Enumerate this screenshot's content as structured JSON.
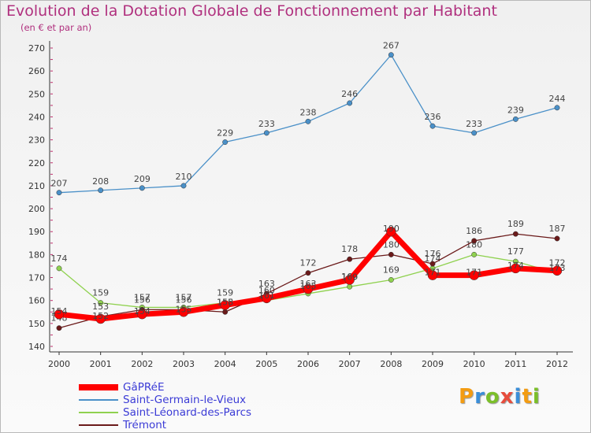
{
  "title": "Evolution de la Dotation Globale de Fonctionnement par Habitant",
  "subtitle": "(en € et par an)",
  "logo": {
    "text": "Proxiti",
    "colors": [
      "#f39c12",
      "#3b8ed8",
      "#7bbf2a",
      "#e74c3c",
      "#3b8ed8",
      "#f39c12",
      "#7bbf2a"
    ]
  },
  "chart_data": {
    "type": "line",
    "categories": [
      "2000",
      "2001",
      "2002",
      "2003",
      "2004",
      "2005",
      "2006",
      "2007",
      "2008",
      "2009",
      "2010",
      "2011",
      "2012"
    ],
    "ylim": [
      140,
      270
    ],
    "yticks": [
      140,
      150,
      160,
      170,
      180,
      190,
      200,
      210,
      220,
      230,
      240,
      250,
      260,
      270
    ],
    "grid": false,
    "legend_position": "bottom-left",
    "series": [
      {
        "name": "Saint-Germain-le-Vieux",
        "color": "#4a90c8",
        "values": [
          207,
          208,
          209,
          210,
          229,
          233,
          238,
          246,
          267,
          236,
          233,
          239,
          244
        ],
        "labels": [
          "207",
          "208",
          "209",
          "210",
          "229",
          "233",
          "238",
          "246",
          "267",
          "236",
          "233",
          "239",
          "244"
        ]
      },
      {
        "name": "Saint-Léonard-des-Parcs",
        "color": "#8fd14f",
        "values": [
          174,
          159,
          157,
          157,
          159,
          160,
          163,
          166,
          169,
          174,
          180,
          177,
          172
        ],
        "labels": [
          "174",
          "159",
          "157",
          "157",
          "159",
          "160",
          "163",
          "166",
          "169",
          "174",
          "180",
          "177",
          "172"
        ]
      },
      {
        "name": "Trémont",
        "color": "#6b1a1a",
        "values": [
          148,
          153,
          156,
          156,
          155,
          163,
          172,
          178,
          180,
          176,
          186,
          189,
          187
        ],
        "labels": [
          "148",
          "153",
          "156",
          "156",
          "155",
          "163",
          "172",
          "178",
          "180",
          "176",
          "186",
          "189",
          "187"
        ]
      },
      {
        "name": "GâPRéE",
        "color": "#ff0000",
        "values": [
          154,
          152,
          154,
          155,
          158,
          161,
          165,
          169,
          190,
          171,
          171,
          174,
          173
        ],
        "labels": [
          "154",
          "152",
          "154",
          "155",
          "158",
          "161",
          "165",
          "169",
          "190",
          "171",
          "171",
          "174",
          "173"
        ]
      }
    ],
    "legend_order": [
      "GâPRéE",
      "Saint-Germain-le-Vieux",
      "Saint-Léonard-des-Parcs",
      "Trémont"
    ]
  }
}
